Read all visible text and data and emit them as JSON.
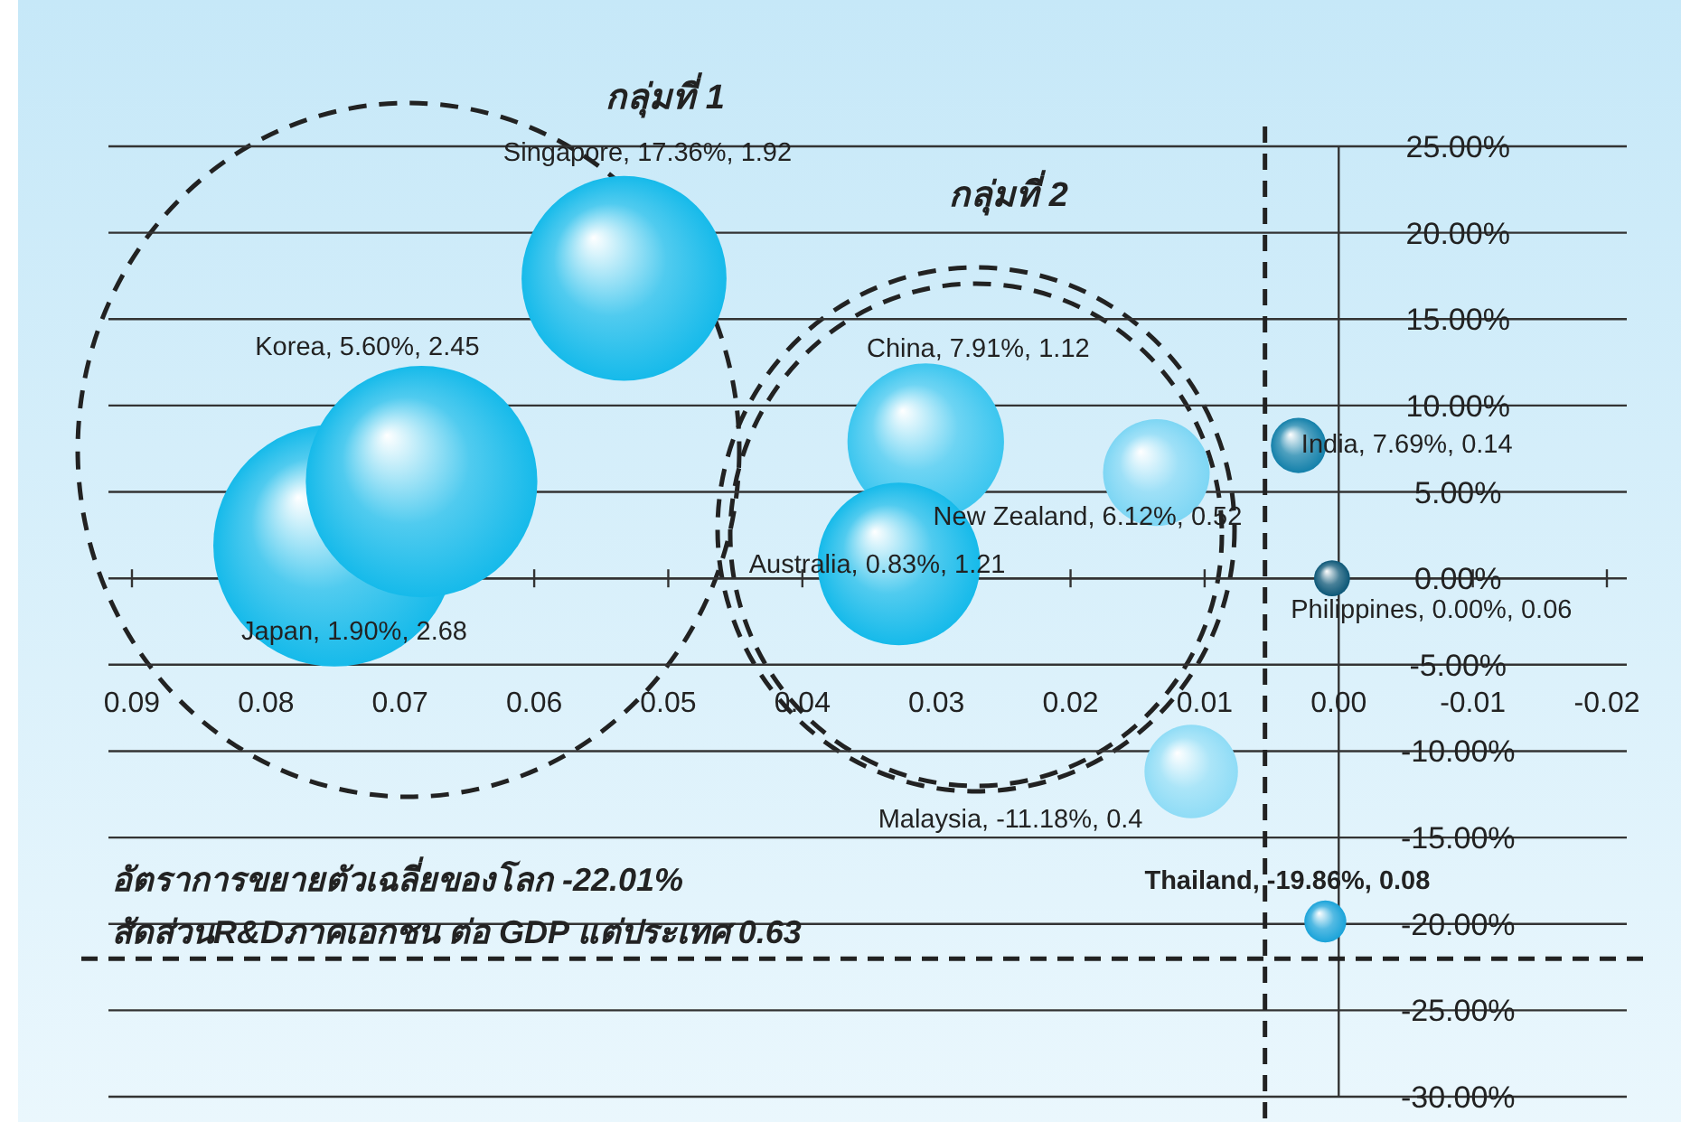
{
  "chart_data": {
    "type": "bubble",
    "x": [
      0.0533,
      0.0684,
      0.0749,
      0.0308,
      0.0328,
      0.0136,
      0.003,
      0.0005,
      0.011,
      0.001
    ],
    "values": [
      17.36,
      5.6,
      1.9,
      7.91,
      0.83,
      6.12,
      7.69,
      0.0,
      -11.18,
      -19.86
    ],
    "sizes": [
      0.716,
      0.914,
      1,
      0.418,
      0.451,
      0.194,
      0.052,
      0.022,
      0.149,
      0.03
    ],
    "colors": [
      "#16baea",
      "#16baea",
      "#16baea",
      "#3cc6ef",
      "#16baea",
      "#7dd6f4",
      "#1380aa",
      "#0b5676",
      "#8fdcf6",
      "#1aa3d9"
    ],
    "value_labels": [
      "Singapore, 17.36%, 1.92",
      "Korea, 5.60%, 2.45",
      "Japan, 1.90%, 2.68",
      "China, 7.91%, 1.12",
      "Australia, 0.83%, 1.21",
      "New Zealand, 6.12%, 0.52",
      "India, 7.69%, 0.14",
      "Philippines, 0.00%, 0.06",
      "Malaysia, -11.18%, 0.4",
      "Thailand, -19.86%, 0.08"
    ],
    "xlim": [
      0.09,
      -0.02
    ],
    "xticks": [
      {
        "value": 0.09,
        "label": "0.09"
      },
      {
        "value": 0.08,
        "label": "0.08"
      },
      {
        "value": 0.07,
        "label": "0.07"
      },
      {
        "value": 0.06,
        "label": "0.06"
      },
      {
        "value": 0.05,
        "label": "0.05"
      },
      {
        "value": 0.04,
        "label": "0.04"
      },
      {
        "value": 0.03,
        "label": "0.03"
      },
      {
        "value": 0.02,
        "label": "0.02"
      },
      {
        "value": 0.01,
        "label": "0.01"
      },
      {
        "value": 0,
        "label": "0.00"
      },
      {
        "value": -0.01,
        "label": "-0.01"
      },
      {
        "value": -0.02,
        "label": "-0.02"
      }
    ],
    "ylim": [
      -30,
      25
    ],
    "yticks": [
      {
        "value": 25,
        "label": "25.00%"
      },
      {
        "value": 20,
        "label": "20.00%"
      },
      {
        "value": 15,
        "label": "15.00%"
      },
      {
        "value": 10,
        "label": "10.00%"
      },
      {
        "value": 5,
        "label": "5.00%"
      },
      {
        "value": 0,
        "label": "0.00%"
      },
      {
        "value": -5,
        "label": "-5.00%"
      },
      {
        "value": -10,
        "label": "-10.00%"
      },
      {
        "value": -15,
        "label": "-15.00%"
      },
      {
        "value": -20,
        "label": "-20.00%"
      },
      {
        "value": -25,
        "label": "-25.00%"
      },
      {
        "value": -30,
        "label": "-30.00%"
      }
    ],
    "grid": "y",
    "ref_lines": [
      {
        "axis": "x",
        "value": 0.0055,
        "line_style": "dashed",
        "color": "#222222"
      },
      {
        "axis": "y",
        "value": -22.01,
        "line_style": "dashed",
        "color": "#222222"
      }
    ],
    "annotations": [
      "กลุ่มที่ 1",
      "กลุ่มที่ 2",
      "อัตราการขยายตัวเฉลี่ยของโลก -22.01%",
      "สัดส่วนR&Dภาคเอกชน ต่อ GDP แต่ประเทศ 0.63"
    ]
  }
}
